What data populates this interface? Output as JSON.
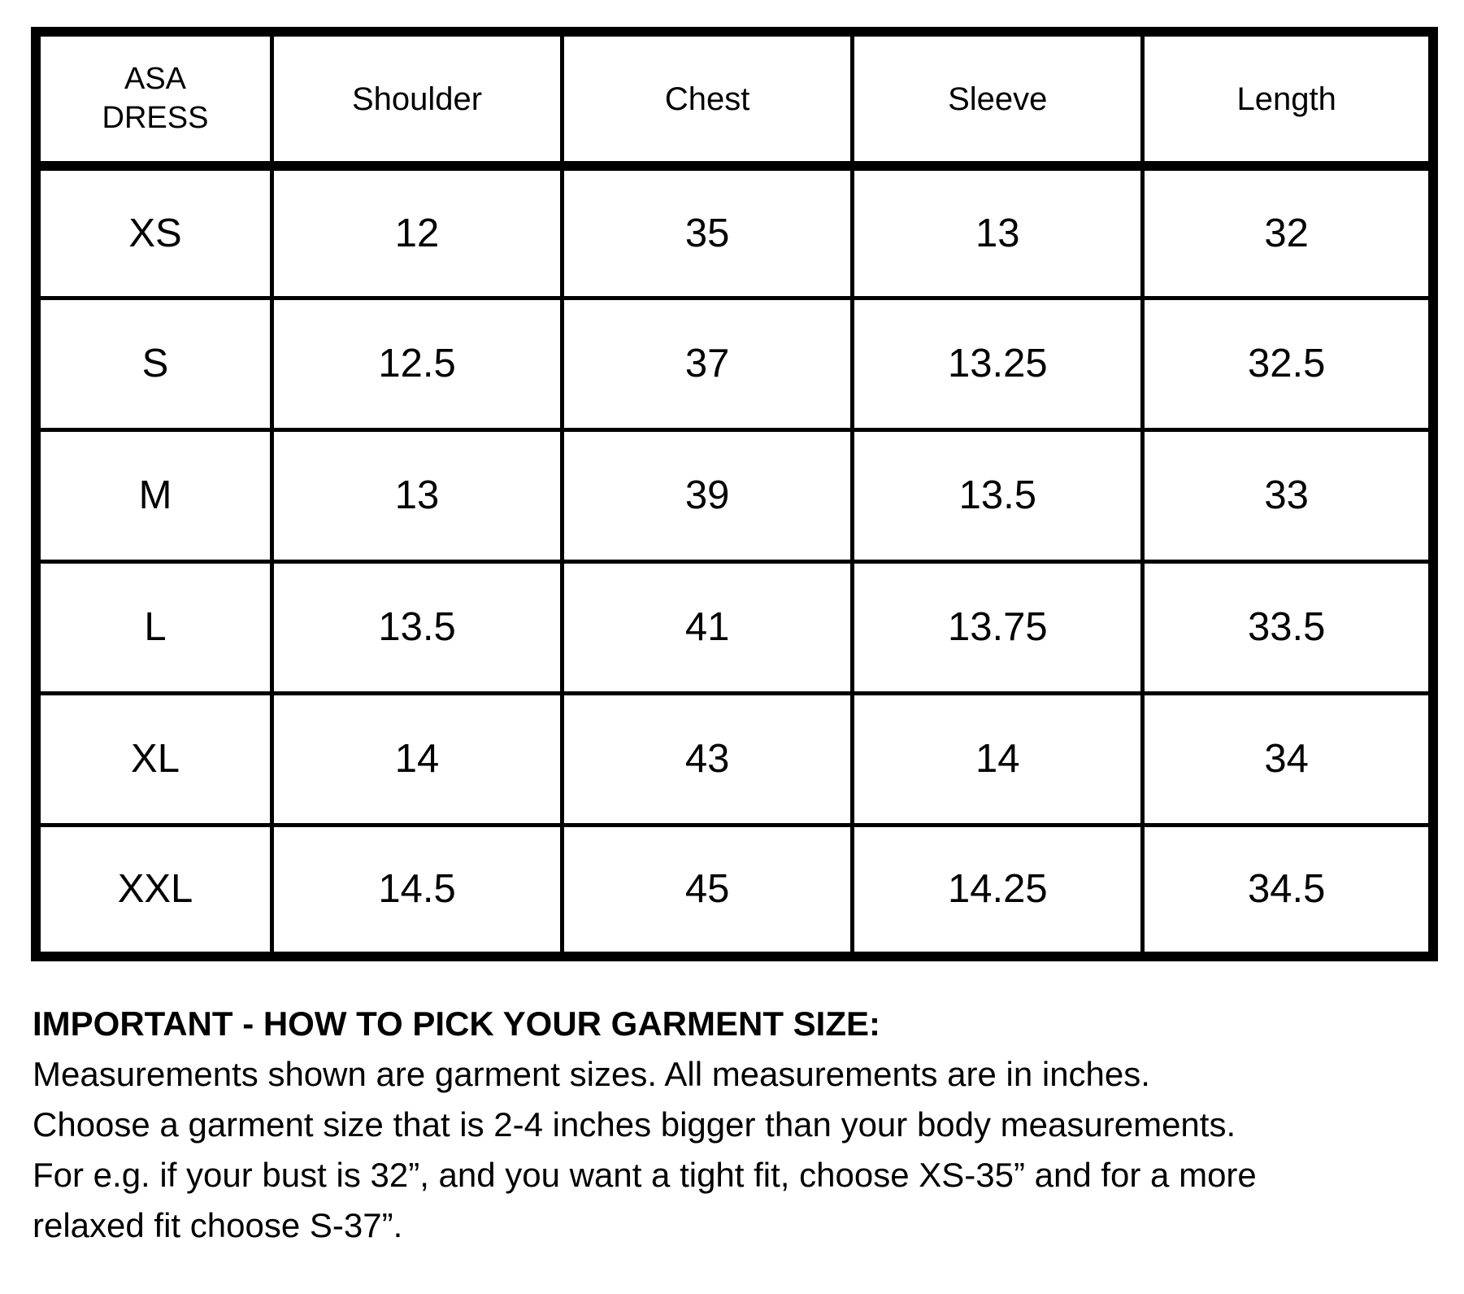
{
  "table": {
    "corner_label": "ASA\nDRESS",
    "headers": {
      "shoulder": "Shoulder",
      "chest": "Chest",
      "sleeve": "Sleeve",
      "length": "Length"
    },
    "rows": [
      {
        "size": "XS",
        "shoulder": "12",
        "chest": "35",
        "sleeve": "13",
        "length": "32"
      },
      {
        "size": "S",
        "shoulder": "12.5",
        "chest": "37",
        "sleeve": "13.25",
        "length": "32.5"
      },
      {
        "size": "M",
        "shoulder": "13",
        "chest": "39",
        "sleeve": "13.5",
        "length": "33"
      },
      {
        "size": "L",
        "shoulder": "13.5",
        "chest": "41",
        "sleeve": "13.75",
        "length": "33.5"
      },
      {
        "size": "XL",
        "shoulder": "14",
        "chest": "43",
        "sleeve": "14",
        "length": "34"
      },
      {
        "size": "XXL",
        "shoulder": "14.5",
        "chest": "45",
        "sleeve": "14.25",
        "length": "34.5"
      }
    ]
  },
  "note": {
    "title": "IMPORTANT - HOW TO PICK YOUR GARMENT SIZE:",
    "lines": [
      "Measurements shown are garment sizes. All measurements are in inches.",
      "Choose a garment size that is 2-4 inches bigger than your body measurements.",
      "For e.g. if your bust is 32”, and you want a tight fit, choose XS-35” and for a more",
      "relaxed fit choose S-37”."
    ]
  },
  "colors": {
    "border": "#000000",
    "text": "#000000",
    "background": "#ffffff"
  }
}
